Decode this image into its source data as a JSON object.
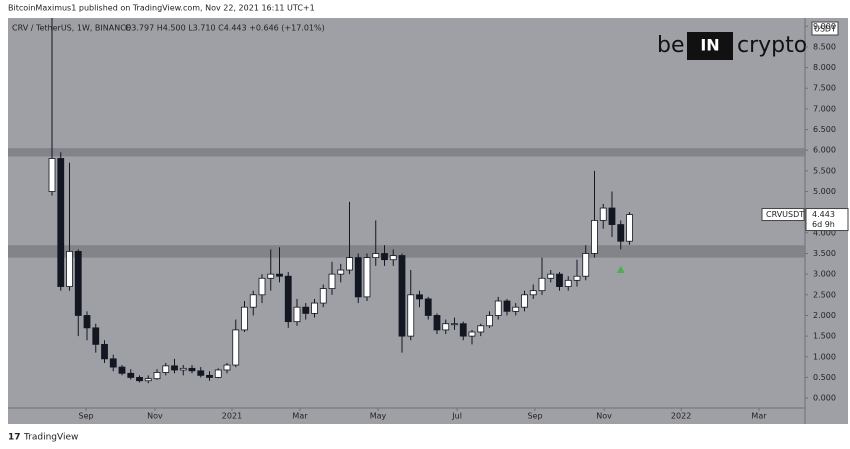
{
  "chart_data": {
    "type": "candlestick",
    "publisher": "BitcoinMaximus1 published on TradingView.com, Nov 22, 2021 16:11 UTC+1",
    "symbol_title": "CRV / TetherUS, 1W, BINANCE",
    "ohlc_text": "O3.797 H4.500 L3.710 C4.443 +0.646 (+17.01%)",
    "y_unit": "USDT",
    "logo": {
      "left": "be",
      "middle": "IN",
      "right": "crypto"
    },
    "footer": "TradingView",
    "x": [
      0,
      1,
      2,
      3,
      4,
      5,
      6,
      7,
      8,
      9,
      10,
      11,
      12,
      13,
      14,
      15,
      16,
      17,
      18,
      19,
      20,
      21,
      22,
      23,
      24,
      25,
      26,
      27,
      28,
      29,
      30,
      31,
      32,
      33,
      34,
      35,
      36,
      37,
      38,
      39,
      40,
      41,
      42,
      43,
      44,
      45,
      46,
      47,
      48,
      49,
      50,
      51,
      52,
      53,
      54,
      55,
      56,
      57,
      58,
      59,
      60,
      61,
      62,
      63,
      64,
      65,
      66
    ],
    "open": [
      5.0,
      5.8,
      2.7,
      3.55,
      2.0,
      1.7,
      1.3,
      0.95,
      0.75,
      0.6,
      0.5,
      0.42,
      0.47,
      0.62,
      0.78,
      0.68,
      0.72,
      0.66,
      0.55,
      0.5,
      0.68,
      0.8,
      1.65,
      2.2,
      2.5,
      2.9,
      3.0,
      2.95,
      1.85,
      2.2,
      2.05,
      2.3,
      2.65,
      3.0,
      3.1,
      3.4,
      2.45,
      3.4,
      3.5,
      3.35,
      3.45,
      1.5,
      2.5,
      2.4,
      2.0,
      1.65,
      1.8,
      1.8,
      1.5,
      1.6,
      1.75,
      2.0,
      2.35,
      2.1,
      2.2,
      2.5,
      2.6,
      2.9,
      3.0,
      2.7,
      2.85,
      2.95,
      3.5,
      4.3,
      4.6,
      4.2,
      3.797
    ],
    "high": [
      9.2,
      5.95,
      5.7,
      3.6,
      2.1,
      1.8,
      1.4,
      1.05,
      0.8,
      0.7,
      0.55,
      0.55,
      0.7,
      0.85,
      0.95,
      0.8,
      0.8,
      0.75,
      0.65,
      0.72,
      0.85,
      1.9,
      2.35,
      2.6,
      3.0,
      3.6,
      3.65,
      3.05,
      2.4,
      2.3,
      2.4,
      2.75,
      3.3,
      3.25,
      4.75,
      3.5,
      3.5,
      4.3,
      3.7,
      3.6,
      3.5,
      3.1,
      2.6,
      2.45,
      2.05,
      1.9,
      1.95,
      1.85,
      1.65,
      1.8,
      2.1,
      2.45,
      2.4,
      2.3,
      2.6,
      2.75,
      3.4,
      3.1,
      3.05,
      2.95,
      3.35,
      3.7,
      5.5,
      4.7,
      5.0,
      4.3,
      4.5
    ],
    "low": [
      4.9,
      2.6,
      2.6,
      1.5,
      1.4,
      1.1,
      0.85,
      0.65,
      0.55,
      0.45,
      0.38,
      0.36,
      0.44,
      0.55,
      0.6,
      0.55,
      0.6,
      0.5,
      0.42,
      0.48,
      0.6,
      0.75,
      1.6,
      2.0,
      2.3,
      2.6,
      2.8,
      1.7,
      1.75,
      1.9,
      1.95,
      2.2,
      2.5,
      2.8,
      3.0,
      2.3,
      2.35,
      3.2,
      3.2,
      3.2,
      1.1,
      1.4,
      2.2,
      1.9,
      1.55,
      1.55,
      1.65,
      1.4,
      1.3,
      1.5,
      1.7,
      1.9,
      2.0,
      2.0,
      2.1,
      2.4,
      2.5,
      2.8,
      2.6,
      2.6,
      2.7,
      2.85,
      3.4,
      4.1,
      3.9,
      3.6,
      3.71
    ],
    "close": [
      5.8,
      2.7,
      3.55,
      2.0,
      1.7,
      1.3,
      0.95,
      0.75,
      0.6,
      0.5,
      0.42,
      0.47,
      0.62,
      0.78,
      0.68,
      0.72,
      0.66,
      0.55,
      0.5,
      0.68,
      0.8,
      1.65,
      2.2,
      2.5,
      2.9,
      3.0,
      2.95,
      1.85,
      2.2,
      2.05,
      2.3,
      2.65,
      3.0,
      3.1,
      3.4,
      2.45,
      3.4,
      3.5,
      3.35,
      3.45,
      1.5,
      2.5,
      2.4,
      2.0,
      1.65,
      1.8,
      1.8,
      1.5,
      1.6,
      1.75,
      2.0,
      2.35,
      2.1,
      2.2,
      2.5,
      2.6,
      2.9,
      3.0,
      2.7,
      2.85,
      2.95,
      3.5,
      4.3,
      4.6,
      4.2,
      3.797,
      4.443
    ],
    "up_color": "#ffffff",
    "down_color": "#131722",
    "background": "#9ea0a6",
    "zones": [
      [
        5.85,
        6.05
      ],
      [
        3.4,
        3.7
      ]
    ],
    "zone_color": "#7b7d83",
    "marker": {
      "x": 65,
      "value": 3.1,
      "color": "#4caf50"
    },
    "price_label": {
      "symbol": "CRVUSDT",
      "value": 4.443,
      "countdown": "6d 9h"
    },
    "xlim": [
      -5.03,
      86.06
    ],
    "xticks": [
      {
        "value": 3.89,
        "label": "Sep"
      },
      {
        "value": 11.77,
        "label": "Nov"
      },
      {
        "value": 20.57,
        "label": "2021"
      },
      {
        "value": 28.34,
        "label": "Mar"
      },
      {
        "value": 37.26,
        "label": "May"
      },
      {
        "value": 46.3,
        "label": "Jul"
      },
      {
        "value": 55.2,
        "label": "Sep"
      },
      {
        "value": 63.1,
        "label": "Nov"
      },
      {
        "value": 71.9,
        "label": "2022"
      },
      {
        "value": 80.8,
        "label": "Mar"
      }
    ],
    "ylim": [
      -0.24,
      9.2
    ],
    "yticks": [
      {
        "value": 0,
        "label": "0.000"
      },
      {
        "value": 0.5,
        "label": "0.500"
      },
      {
        "value": 1,
        "label": "1.000"
      },
      {
        "value": 1.5,
        "label": "1.500"
      },
      {
        "value": 2,
        "label": "2.000"
      },
      {
        "value": 2.5,
        "label": "2.500"
      },
      {
        "value": 3,
        "label": "3.000"
      },
      {
        "value": 3.5,
        "label": "3.500"
      },
      {
        "value": 4,
        "label": "4.000"
      },
      {
        "value": 4.5,
        "label": "4.500"
      },
      {
        "value": 5,
        "label": "5.000"
      },
      {
        "value": 5.5,
        "label": "5.500"
      },
      {
        "value": 6,
        "label": "6.000"
      },
      {
        "value": 6.5,
        "label": "6.500"
      },
      {
        "value": 7,
        "label": "7.000"
      },
      {
        "value": 7.5,
        "label": "7.500"
      },
      {
        "value": 8,
        "label": "8.000"
      },
      {
        "value": 8.5,
        "label": "8.500"
      },
      {
        "value": 9,
        "label": "9.000"
      }
    ],
    "grid": false
  }
}
